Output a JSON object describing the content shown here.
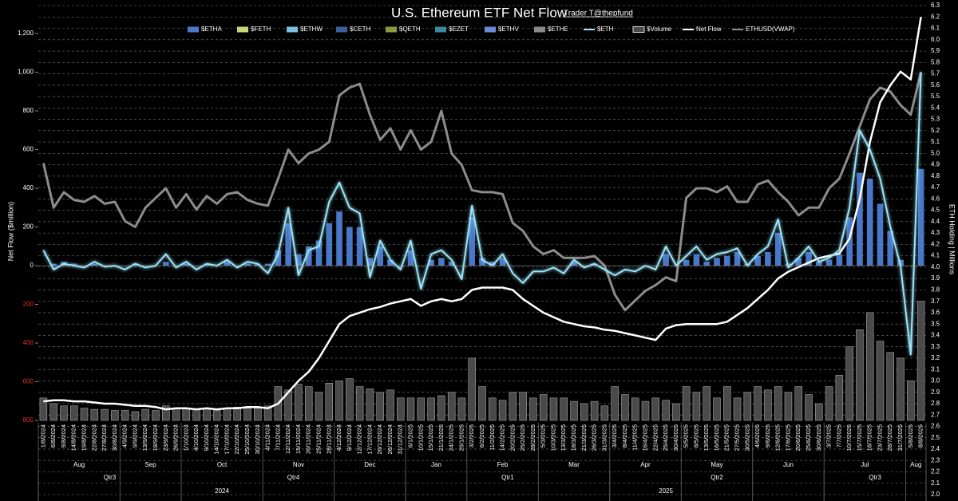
{
  "chart_data": {
    "type": "line",
    "title": "U.S. Ethereum ETF Net Flow",
    "subtitle": "Trader T@thepfund",
    "y_label": "Net Flow ($million)",
    "y2_label": "ETH Holding | Millions",
    "categories": [
      "1/8/2024",
      "6/8/2024",
      "9/8/2024",
      "14/8/2024",
      "19/8/2024",
      "22/8/2024",
      "27/8/2024",
      "30/8/2024",
      "4/9/2024",
      "9/9/2024",
      "13/9/2024",
      "18/9/2024",
      "23/9/2024",
      "26/9/2024",
      "1/10/2024",
      "4/10/2024",
      "9/10/2024",
      "14/10/2024",
      "17/10/2024",
      "22/10/2024",
      "25/10/2024",
      "30/10/2024",
      "4/11/2024",
      "7/11/2024",
      "12/11/2024",
      "15/11/2024",
      "20/11/2024",
      "25/11/2024",
      "28/11/2024",
      "4/12/2024",
      "9/12/2024",
      "12/12/2024",
      "17/12/2024",
      "20/12/2024",
      "26/12/2024",
      "31/12/2024",
      "6/1/2025",
      "10/1/2025",
      "15/1/2025",
      "21/1/2025",
      "24/1/2025",
      "29/1/2025",
      "3/2/2025",
      "6/2/2025",
      "11/2/2025",
      "14/2/2025",
      "20/2/2025",
      "25/2/2025",
      "28/2/2025",
      "5/3/2025",
      "10/3/2025",
      "13/3/2025",
      "18/3/2025",
      "21/3/2025",
      "26/3/2025",
      "31/3/2025",
      "3/4/2025",
      "8/4/2025",
      "11/4/2025",
      "16/4/2025",
      "22/4/2025",
      "25/4/2025",
      "30/4/2025",
      "5/5/2025",
      "8/5/2025",
      "13/5/2025",
      "16/5/2025",
      "21/5/2025",
      "27/5/2025",
      "30/5/2025",
      "4/6/2025",
      "9/6/2025",
      "12/6/2025",
      "17/6/2025",
      "20/6/2025",
      "25/6/2025",
      "30/6/2025",
      "3/7/2025",
      "7/7/2025",
      "10/7/2025",
      "15/7/2025",
      "18/7/2025",
      "23/7/2025",
      "28/7/2025",
      "31/7/2025",
      "5/8/2025",
      "8/8/2025"
    ],
    "months": [
      "Aug",
      "Sep",
      "Oct",
      "Nov",
      "Dec",
      "Jan",
      "Feb",
      "Mar",
      "Apr",
      "May",
      "Jun",
      "Jul",
      "Aug"
    ],
    "quarters": [
      "Qtr3",
      "Qtr4",
      "Qtr1",
      "Qtr2",
      "Qtr3"
    ],
    "years": [
      "2024",
      "2025"
    ],
    "ylim": [
      -800,
      1200
    ],
    "yticks": [
      {
        "value": 1200,
        "label": "1,200"
      },
      {
        "value": 1000,
        "label": "1,000"
      },
      800,
      600,
      400,
      200,
      0,
      {
        "value": -200,
        "label": "200"
      },
      {
        "value": -400,
        "label": "400"
      },
      {
        "value": -600,
        "label": "600"
      },
      {
        "value": -800,
        "label": "800"
      }
    ],
    "negative_tick_color": "#e0302a",
    "y2lim": [
      2.0,
      6.3
    ],
    "y2ticks": [
      {
        "value": 2,
        "label": "2.0"
      },
      2.1,
      2.2,
      2.3,
      2.4,
      2.5,
      2.6,
      2.7,
      2.8,
      2.9,
      {
        "value": 3,
        "label": "3.0"
      },
      3.1,
      3.2,
      3.3,
      3.4,
      3.5,
      3.6,
      3.7,
      3.8,
      3.9,
      {
        "value": 4,
        "label": "4.0"
      },
      4.1,
      4.2,
      4.3,
      4.4,
      4.5,
      4.6,
      4.7,
      4.8,
      4.9,
      {
        "value": 5,
        "label": "5.0"
      },
      5.1,
      5.2,
      5.3,
      5.4,
      5.5,
      5.6,
      5.7,
      5.8,
      5.9,
      {
        "value": 6,
        "label": "6.0"
      },
      6.1,
      6.2,
      6.3
    ],
    "grid": true,
    "series": [
      {
        "name": "$ETHA",
        "color": "#4a78c8",
        "style": "bar",
        "values": [
          0,
          10,
          20,
          10,
          0,
          10,
          0,
          0,
          0,
          10,
          0,
          0,
          20,
          0,
          10,
          0,
          10,
          0,
          20,
          0,
          10,
          10,
          10,
          80,
          220,
          60,
          100,
          130,
          220,
          280,
          200,
          200,
          40,
          100,
          30,
          0,
          80,
          0,
          30,
          40,
          20,
          0,
          250,
          40,
          20,
          40,
          0,
          0,
          0,
          0,
          0,
          0,
          20,
          0,
          10,
          0,
          0,
          0,
          0,
          0,
          0,
          60,
          0,
          30,
          60,
          20,
          40,
          50,
          70,
          10,
          50,
          70,
          170,
          10,
          40,
          70,
          20,
          30,
          60,
          250,
          480,
          450,
          320,
          180,
          30,
          0,
          500
        ]
      },
      {
        "name": "$FETH",
        "color": "#c8d67a",
        "style": "bar"
      },
      {
        "name": "$ETHW",
        "color": "#7ac0e0",
        "style": "bar"
      },
      {
        "name": "$CETH",
        "color": "#3a5f9a",
        "style": "bar"
      },
      {
        "name": "$QETH",
        "color": "#8a9a40",
        "style": "bar"
      },
      {
        "name": "$EZET",
        "color": "#3a8aa0",
        "style": "bar"
      },
      {
        "name": "$ETHV",
        "color": "#6a8ad8",
        "style": "bar"
      },
      {
        "name": "$ETHE",
        "color": "#8a8a8a",
        "style": "bar"
      },
      {
        "name": "$ETH",
        "color": "#9be4f8",
        "style": "line",
        "values": [
          80,
          -20,
          10,
          0,
          -10,
          20,
          -5,
          0,
          -20,
          10,
          -10,
          0,
          60,
          -10,
          20,
          -20,
          10,
          0,
          30,
          -10,
          20,
          10,
          -40,
          60,
          300,
          -50,
          80,
          100,
          330,
          430,
          300,
          270,
          -60,
          130,
          30,
          -20,
          130,
          -120,
          60,
          80,
          30,
          -70,
          310,
          30,
          0,
          60,
          -40,
          -90,
          -30,
          -30,
          -10,
          -40,
          30,
          -10,
          10,
          -20,
          -50,
          -20,
          -30,
          0,
          -20,
          100,
          0,
          50,
          100,
          30,
          60,
          70,
          90,
          0,
          60,
          100,
          240,
          -10,
          40,
          100,
          20,
          40,
          80,
          300,
          700,
          600,
          450,
          200,
          0,
          -460,
          1000
        ]
      },
      {
        "name": "$Volume",
        "color": "#4a4a4a",
        "style": "outline",
        "axis": "y2",
        "values": [
          2.85,
          2.8,
          2.78,
          2.78,
          2.76,
          2.75,
          2.75,
          2.74,
          2.74,
          2.73,
          2.75,
          2.74,
          2.78,
          2.76,
          2.76,
          2.75,
          2.76,
          2.74,
          2.76,
          2.77,
          2.76,
          2.76,
          2.78,
          2.95,
          2.92,
          2.97,
          2.95,
          2.9,
          2.98,
          3.0,
          3.02,
          2.95,
          2.93,
          2.9,
          2.92,
          2.85,
          2.85,
          2.85,
          2.85,
          2.87,
          2.9,
          2.85,
          3.2,
          2.95,
          2.85,
          2.83,
          2.9,
          2.9,
          2.85,
          2.88,
          2.85,
          2.85,
          2.82,
          2.8,
          2.82,
          2.78,
          2.95,
          2.88,
          2.85,
          2.82,
          2.85,
          2.83,
          2.8,
          2.95,
          2.9,
          2.95,
          2.85,
          2.95,
          2.85,
          2.9,
          2.95,
          2.92,
          2.95,
          2.9,
          2.95,
          2.88,
          2.8,
          2.95,
          3.05,
          3.3,
          3.45,
          3.6,
          3.35,
          3.25,
          3.2,
          3.0,
          3.7
        ]
      },
      {
        "name": "Net Flow",
        "color": "#ffffff",
        "style": "line",
        "axis": "y2",
        "values": [
          2.82,
          2.83,
          2.83,
          2.82,
          2.82,
          2.81,
          2.8,
          2.8,
          2.79,
          2.78,
          2.78,
          2.77,
          2.75,
          2.76,
          2.76,
          2.75,
          2.76,
          2.75,
          2.76,
          2.76,
          2.77,
          2.77,
          2.76,
          2.8,
          2.9,
          3.0,
          3.08,
          3.2,
          3.35,
          3.5,
          3.57,
          3.6,
          3.63,
          3.65,
          3.68,
          3.7,
          3.72,
          3.66,
          3.7,
          3.72,
          3.7,
          3.72,
          3.8,
          3.82,
          3.82,
          3.82,
          3.8,
          3.72,
          3.66,
          3.6,
          3.56,
          3.52,
          3.5,
          3.48,
          3.47,
          3.45,
          3.44,
          3.42,
          3.4,
          3.38,
          3.36,
          3.46,
          3.49,
          3.5,
          3.5,
          3.5,
          3.5,
          3.52,
          3.58,
          3.64,
          3.72,
          3.8,
          3.9,
          3.96,
          4.0,
          4.04,
          4.08,
          4.1,
          4.12,
          4.25,
          4.6,
          5.1,
          5.45,
          5.6,
          5.72,
          5.65,
          6.2
        ]
      },
      {
        "name": "ETHUSD(VWAP)",
        "color": "#8c8c8c",
        "style": "line",
        "values": [
          530,
          300,
          380,
          340,
          330,
          360,
          320,
          330,
          230,
          200,
          300,
          350,
          400,
          300,
          370,
          290,
          360,
          320,
          370,
          380,
          340,
          320,
          310,
          450,
          600,
          530,
          580,
          600,
          640,
          880,
          920,
          940,
          780,
          650,
          710,
          600,
          700,
          600,
          640,
          800,
          580,
          520,
          390,
          380,
          380,
          370,
          220,
          180,
          100,
          60,
          80,
          40,
          40,
          40,
          50,
          0,
          -150,
          -230,
          -180,
          -130,
          -100,
          -60,
          -80,
          350,
          400,
          400,
          380,
          410,
          330,
          330,
          420,
          440,
          380,
          330,
          260,
          300,
          300,
          400,
          450,
          580,
          720,
          860,
          920,
          900,
          830,
          780,
          1000
        ]
      }
    ]
  }
}
